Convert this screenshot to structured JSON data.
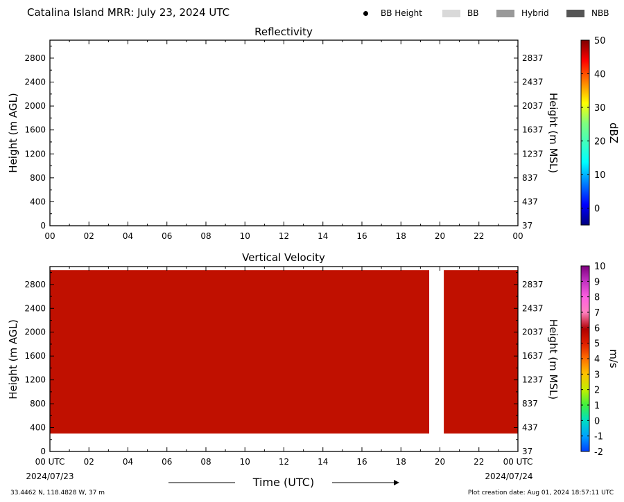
{
  "header": {
    "title": "Catalina Island MRR:  July 23, 2024 UTC",
    "legend": [
      {
        "label": "BB Height",
        "marker": "dot",
        "color": "#000000"
      },
      {
        "label": "BB",
        "marker": "box",
        "color": "#d9d9d9"
      },
      {
        "label": "Hybrid",
        "marker": "box",
        "color": "#999999"
      },
      {
        "label": "NBB",
        "marker": "box",
        "color": "#555555"
      }
    ]
  },
  "footer": {
    "location": "33.4462 N, 118.4828 W, 37 m",
    "created": "Plot creation date: Aug 01, 2024 18:57:11 UTC",
    "xlabel": "Time (UTC)",
    "date_start": "2024/07/23",
    "date_end": "2024/07/24"
  },
  "chart_data": [
    {
      "type": "heatmap",
      "title": "Reflectivity",
      "ylabel": "Height (m AGL)",
      "ylabel_right": "Height (m MSL)",
      "xlim": [
        0,
        24
      ],
      "ylim": [
        0,
        3100
      ],
      "x_ticks": [
        "00",
        "02",
        "04",
        "06",
        "08",
        "10",
        "12",
        "14",
        "16",
        "18",
        "20",
        "22",
        "00"
      ],
      "y_ticks": [
        0,
        400,
        800,
        1200,
        1600,
        2000,
        2400,
        2800
      ],
      "y_ticks_right": [
        37,
        437,
        837,
        1237,
        1637,
        2037,
        2437,
        2837
      ],
      "data": [],
      "colorbar": {
        "label": "dBZ",
        "range": [
          -5,
          50
        ],
        "ticks": [
          0,
          10,
          20,
          30,
          40,
          50
        ]
      }
    },
    {
      "type": "heatmap",
      "title": "Vertical Velocity",
      "ylabel": "Height (m AGL)",
      "ylabel_right": "Height (m MSL)",
      "xlim": [
        0,
        24
      ],
      "ylim": [
        0,
        3100
      ],
      "x_ticks": [
        "00 UTC",
        "02",
        "04",
        "06",
        "08",
        "10",
        "12",
        "14",
        "16",
        "18",
        "20",
        "22",
        "00 UTC"
      ],
      "y_ticks": [
        0,
        400,
        800,
        1200,
        1600,
        2000,
        2400,
        2800
      ],
      "y_ticks_right": [
        37,
        437,
        837,
        1237,
        1637,
        2037,
        2437,
        2837
      ],
      "fill_value_ms": 6.3,
      "fill_color": "#c01000",
      "height_range": [
        300,
        3040
      ],
      "coverage_intervals_utc": [
        [
          0,
          19.45
        ],
        [
          20.2,
          24
        ]
      ],
      "colorbar": {
        "label": "m/s",
        "range": [
          -2,
          10
        ],
        "ticks": [
          -2,
          -1,
          0,
          1,
          2,
          3,
          4,
          5,
          6,
          7,
          8,
          9,
          10
        ]
      }
    }
  ]
}
